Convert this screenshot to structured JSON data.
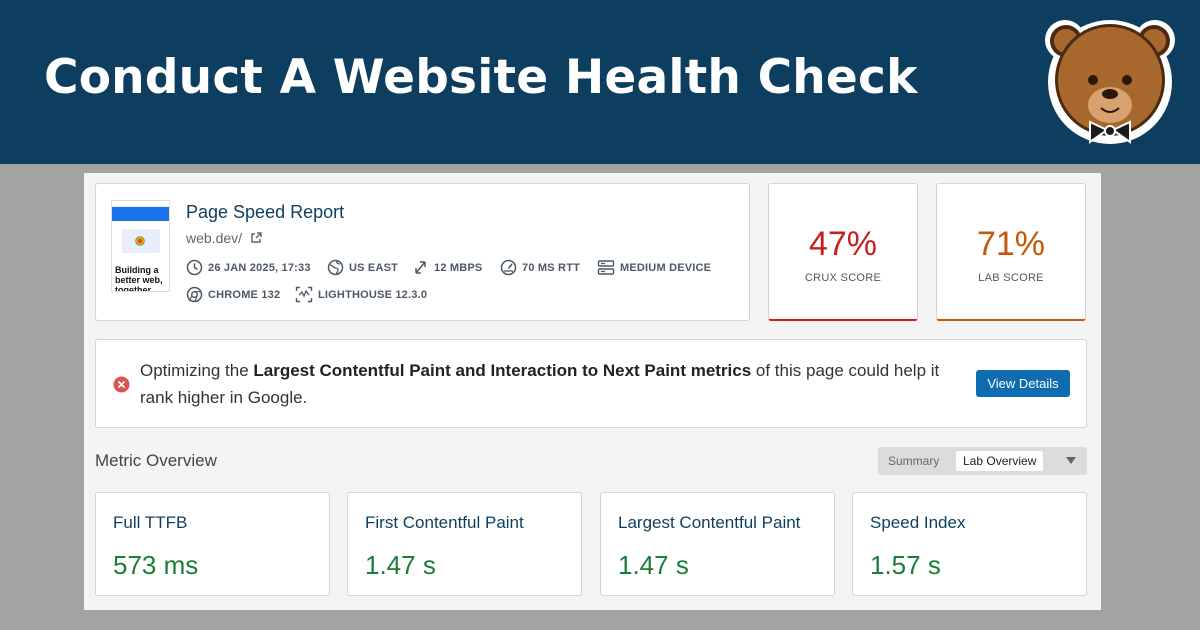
{
  "banner": {
    "title": "Conduct A Website Health Check"
  },
  "report": {
    "title": "Page Speed Report",
    "url": "web.dev/",
    "thumbnail_text": "Building a better web, together",
    "meta": {
      "date": "26 JAN 2025, 17:33",
      "location": "US EAST",
      "bandwidth": "12 MBPS",
      "rtt": "70 MS RTT",
      "device": "MEDIUM DEVICE",
      "browser": "CHROME 132",
      "lighthouse": "LIGHTHOUSE 12.3.0"
    }
  },
  "scores": {
    "crux": {
      "value": "47%",
      "label": "CRUX SCORE",
      "color": "#c71f1f"
    },
    "lab": {
      "value": "71%",
      "label": "LAB SCORE",
      "color": "#c6580a"
    }
  },
  "alert": {
    "prefix": "Optimizing the ",
    "bold": "Largest Contentful Paint and Interaction to Next Paint metrics",
    "suffix": " of this page could help it rank higher in Google.",
    "button": "View Details"
  },
  "overview": {
    "title": "Metric Overview",
    "toggle_summary": "Summary",
    "toggle_selected": "Lab Overview",
    "metrics": [
      {
        "name": "Full TTFB",
        "value": "573 ms"
      },
      {
        "name": "First Contentful Paint",
        "value": "1.47 s"
      },
      {
        "name": "Largest Contentful Paint",
        "value": "1.47 s"
      },
      {
        "name": "Speed Index",
        "value": "1.57 s"
      }
    ]
  },
  "colors": {
    "banner": "#0d3e5f",
    "good": "#1b7d3a",
    "button": "#0f6cae"
  }
}
